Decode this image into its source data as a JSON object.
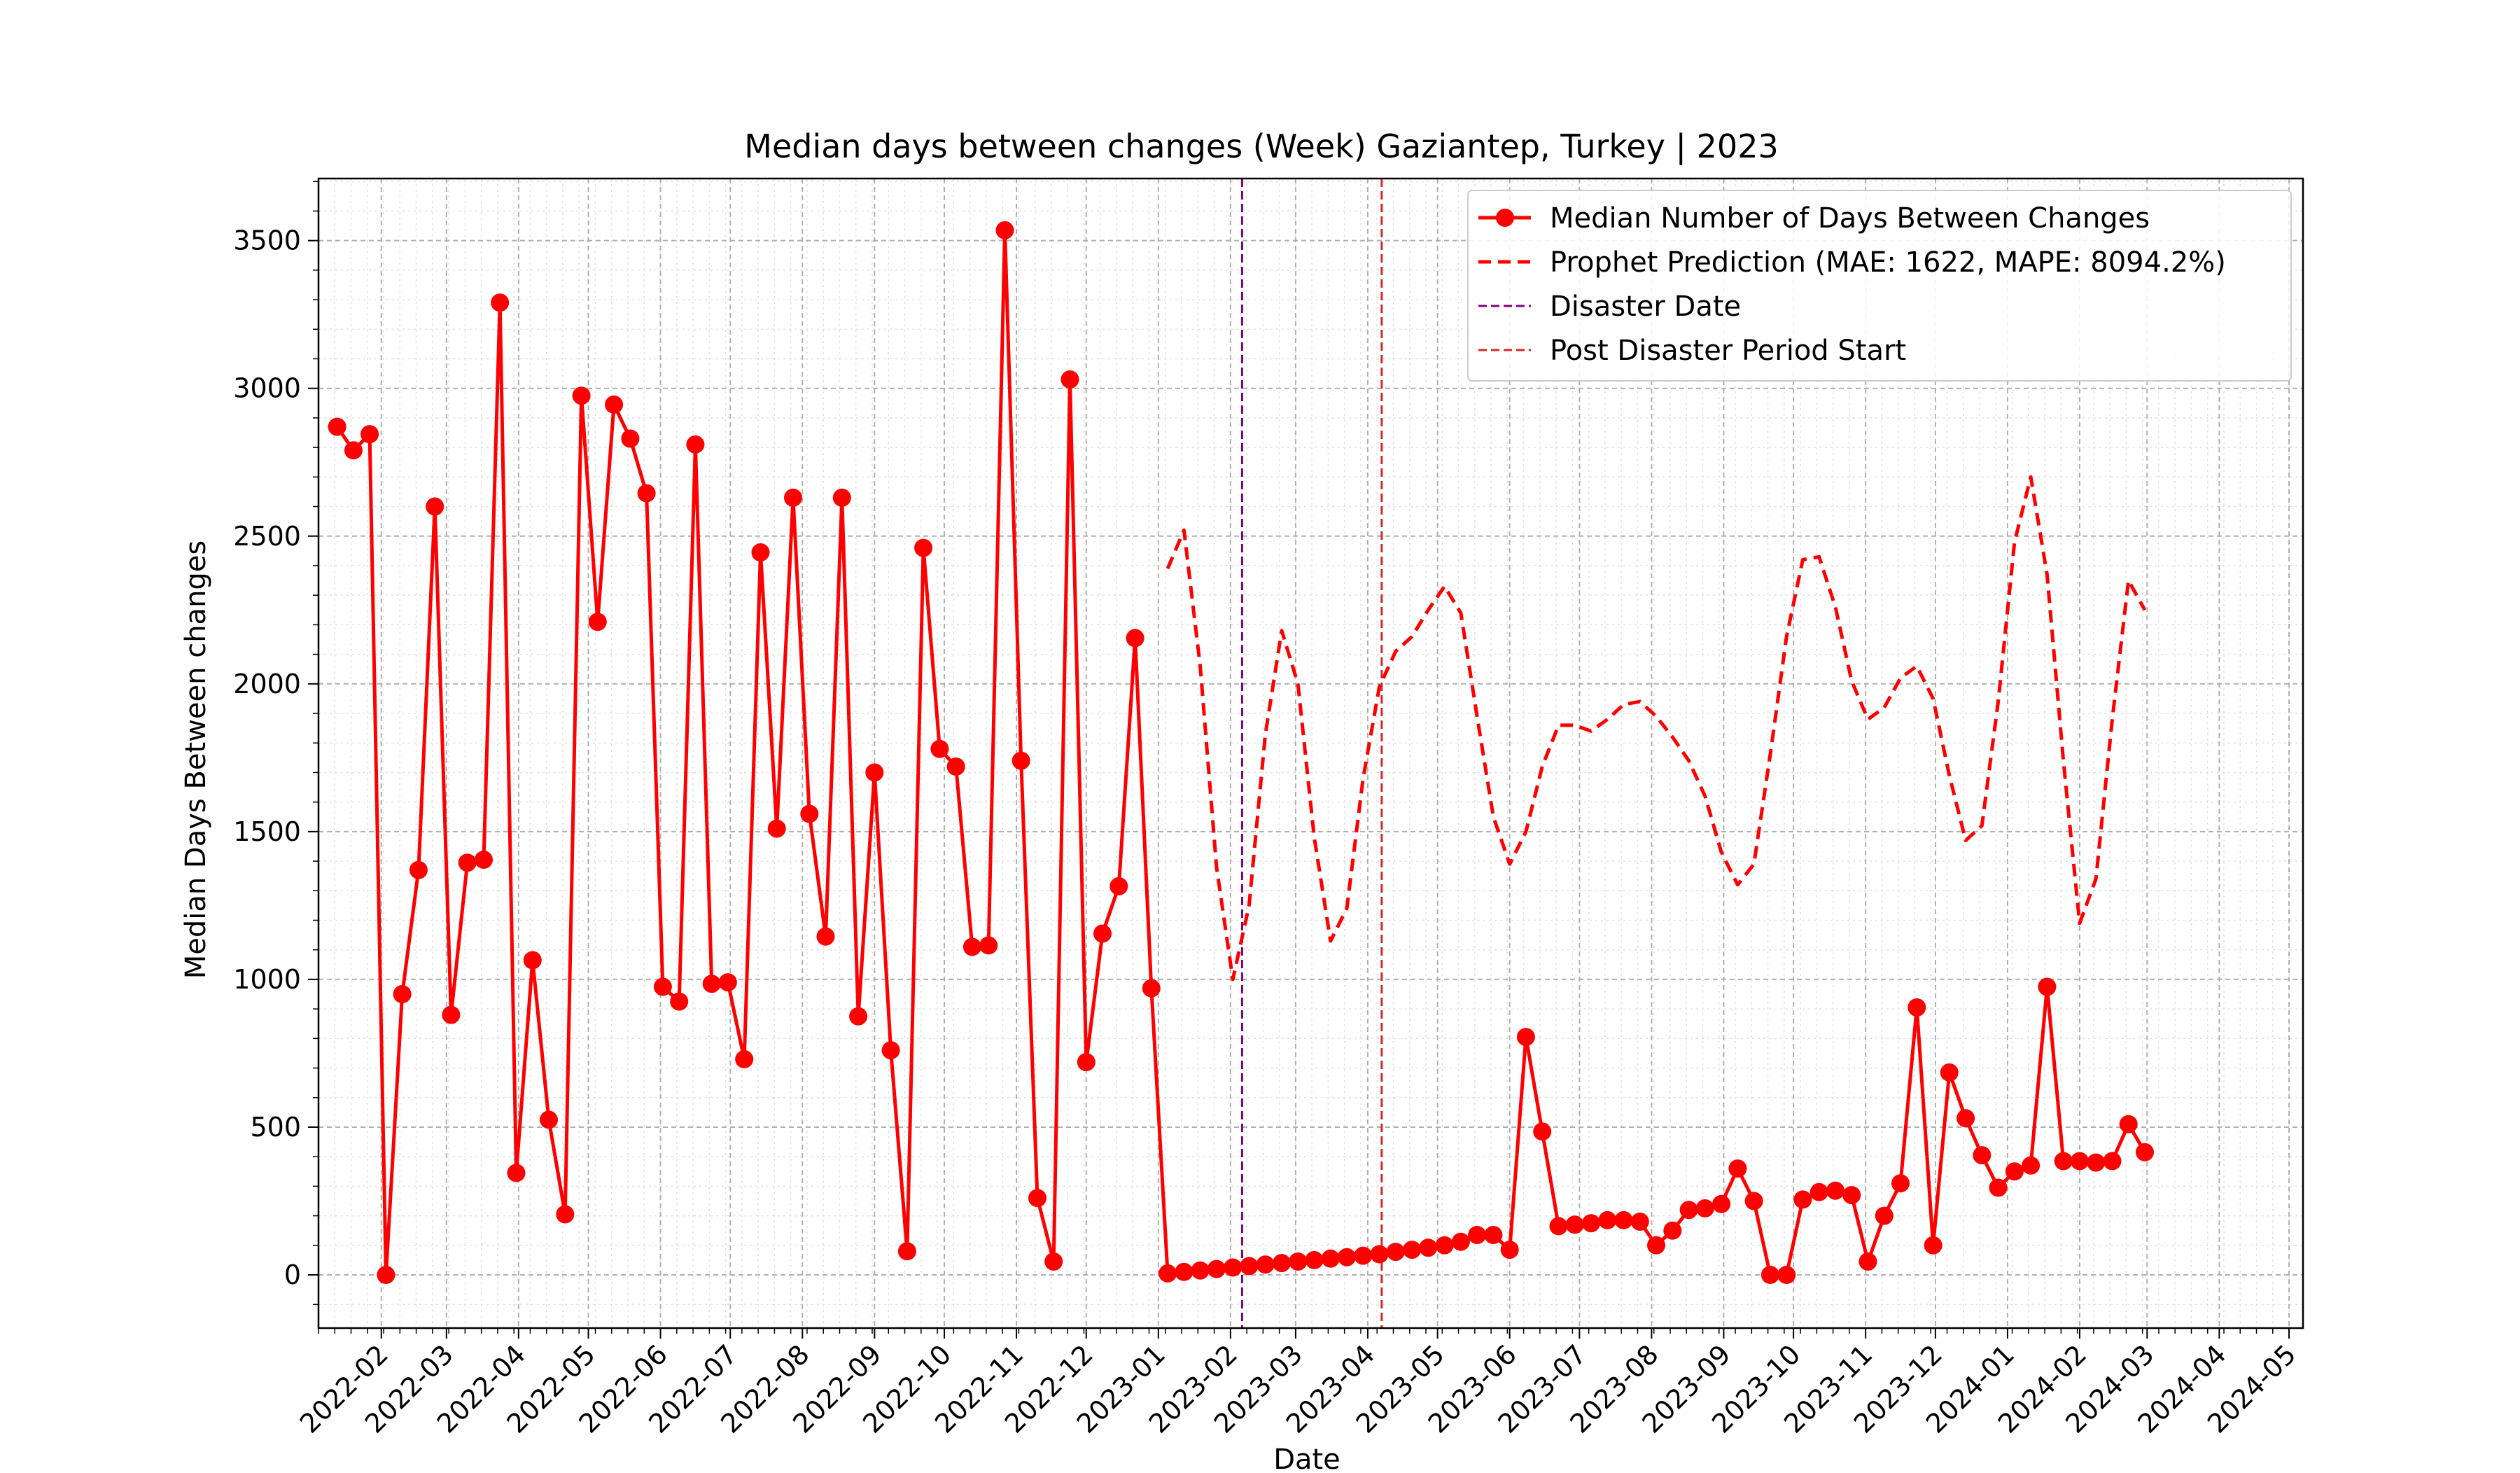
{
  "chart_data": {
    "type": "line",
    "title": "Median days between changes (Week) Gaziantep, Turkey | 2023",
    "xlabel": "Date",
    "ylabel": "Median Days Between changes",
    "xlim": [
      "2022-01-05",
      "2024-05-07"
    ],
    "ylim": [
      -180,
      3710
    ],
    "x_ticks": [
      "2022-02",
      "2022-03",
      "2022-04",
      "2022-05",
      "2022-06",
      "2022-07",
      "2022-08",
      "2022-09",
      "2022-10",
      "2022-11",
      "2022-12",
      "2023-01",
      "2023-02",
      "2023-03",
      "2023-04",
      "2023-05",
      "2023-06",
      "2023-07",
      "2023-08",
      "2023-09",
      "2023-10",
      "2023-11",
      "2023-12",
      "2024-01",
      "2024-02",
      "2024-03",
      "2024-04",
      "2024-05"
    ],
    "y_ticks": [
      0,
      500,
      1000,
      1500,
      2000,
      2500,
      3000,
      3500
    ],
    "grid": true,
    "legend_position": "upper right",
    "colors": {
      "actual": "#ff0000",
      "prediction": "#ff0000",
      "disaster": "#800080",
      "post": "#d62728",
      "grid": "#b0b0b0"
    },
    "legend": [
      "Median Number of Days Between Changes",
      "Prophet Prediction (MAE: 1622, MAPE: 8094.2%)",
      "Disaster Date",
      "Post Disaster Period Start"
    ],
    "vlines": {
      "disaster": "2023-02-06",
      "post_disaster_start": "2023-04-07"
    },
    "series": [
      {
        "name": "Median Number of Days Between Changes",
        "style": "solid-marker",
        "points": [
          [
            "2022-01-13",
            2870
          ],
          [
            "2022-01-20",
            2790
          ],
          [
            "2022-01-27",
            2845
          ],
          [
            "2022-02-03",
            0
          ],
          [
            "2022-02-10",
            950
          ],
          [
            "2022-02-17",
            1370
          ],
          [
            "2022-02-24",
            2600
          ],
          [
            "2022-03-03",
            880
          ],
          [
            "2022-03-10",
            1395
          ],
          [
            "2022-03-17",
            1405
          ],
          [
            "2022-03-24",
            3290
          ],
          [
            "2022-03-31",
            345
          ],
          [
            "2022-04-07",
            1065
          ],
          [
            "2022-04-14",
            525
          ],
          [
            "2022-04-21",
            205
          ],
          [
            "2022-04-28",
            2975
          ],
          [
            "2022-05-05",
            2210
          ],
          [
            "2022-05-12",
            2945
          ],
          [
            "2022-05-19",
            2830
          ],
          [
            "2022-05-26",
            2645
          ],
          [
            "2022-06-02",
            975
          ],
          [
            "2022-06-09",
            925
          ],
          [
            "2022-06-16",
            2810
          ],
          [
            "2022-06-23",
            985
          ],
          [
            "2022-06-30",
            990
          ],
          [
            "2022-07-07",
            730
          ],
          [
            "2022-07-14",
            2445
          ],
          [
            "2022-07-21",
            1510
          ],
          [
            "2022-07-28",
            2630
          ],
          [
            "2022-08-04",
            1560
          ],
          [
            "2022-08-11",
            1145
          ],
          [
            "2022-08-18",
            2630
          ],
          [
            "2022-08-25",
            875
          ],
          [
            "2022-09-01",
            1700
          ],
          [
            "2022-09-08",
            760
          ],
          [
            "2022-09-15",
            80
          ],
          [
            "2022-09-22",
            2460
          ],
          [
            "2022-09-29",
            1780
          ],
          [
            "2022-10-06",
            1720
          ],
          [
            "2022-10-13",
            1110
          ],
          [
            "2022-10-20",
            1115
          ],
          [
            "2022-10-27",
            3535
          ],
          [
            "2022-11-03",
            1740
          ],
          [
            "2022-11-10",
            260
          ],
          [
            "2022-11-17",
            45
          ],
          [
            "2022-11-24",
            3030
          ],
          [
            "2022-12-01",
            720
          ],
          [
            "2022-12-08",
            1155
          ],
          [
            "2022-12-15",
            1315
          ],
          [
            "2022-12-22",
            2155
          ],
          [
            "2022-12-29",
            970
          ],
          [
            "2023-01-05",
            5
          ],
          [
            "2023-01-12",
            10
          ],
          [
            "2023-01-19",
            15
          ],
          [
            "2023-01-26",
            20
          ],
          [
            "2023-02-02",
            25
          ],
          [
            "2023-02-09",
            30
          ],
          [
            "2023-02-16",
            35
          ],
          [
            "2023-02-23",
            40
          ],
          [
            "2023-03-02",
            45
          ],
          [
            "2023-03-09",
            50
          ],
          [
            "2023-03-16",
            55
          ],
          [
            "2023-03-23",
            60
          ],
          [
            "2023-03-30",
            65
          ],
          [
            "2023-04-06",
            70
          ],
          [
            "2023-04-13",
            78
          ],
          [
            "2023-04-20",
            85
          ],
          [
            "2023-04-27",
            92
          ],
          [
            "2023-05-04",
            100
          ],
          [
            "2023-05-11",
            112
          ],
          [
            "2023-05-18",
            135
          ],
          [
            "2023-05-25",
            135
          ],
          [
            "2023-06-01",
            85
          ],
          [
            "2023-06-08",
            805
          ],
          [
            "2023-06-15",
            485
          ],
          [
            "2023-06-22",
            165
          ],
          [
            "2023-06-29",
            170
          ],
          [
            "2023-07-06",
            175
          ],
          [
            "2023-07-13",
            185
          ],
          [
            "2023-07-20",
            185
          ],
          [
            "2023-07-27",
            180
          ],
          [
            "2023-08-03",
            100
          ],
          [
            "2023-08-10",
            150
          ],
          [
            "2023-08-17",
            220
          ],
          [
            "2023-08-24",
            225
          ],
          [
            "2023-08-31",
            240
          ],
          [
            "2023-09-07",
            360
          ],
          [
            "2023-09-14",
            250
          ],
          [
            "2023-09-21",
            0
          ],
          [
            "2023-09-28",
            0
          ],
          [
            "2023-10-05",
            255
          ],
          [
            "2023-10-12",
            280
          ],
          [
            "2023-10-19",
            285
          ],
          [
            "2023-10-26",
            270
          ],
          [
            "2023-11-02",
            45
          ],
          [
            "2023-11-09",
            200
          ],
          [
            "2023-11-16",
            310
          ],
          [
            "2023-11-23",
            905
          ],
          [
            "2023-11-30",
            100
          ],
          [
            "2023-12-07",
            685
          ],
          [
            "2023-12-14",
            530
          ],
          [
            "2023-12-21",
            405
          ],
          [
            "2023-12-28",
            295
          ],
          [
            "2024-01-04",
            350
          ],
          [
            "2024-01-11",
            370
          ],
          [
            "2024-01-18",
            975
          ],
          [
            "2024-01-25",
            385
          ],
          [
            "2024-02-01",
            385
          ],
          [
            "2024-02-08",
            380
          ],
          [
            "2024-02-15",
            385
          ],
          [
            "2024-02-22",
            510
          ],
          [
            "2024-02-29",
            415
          ]
        ]
      },
      {
        "name": "Prophet Prediction (MAE: 1622, MAPE: 8094.2%)",
        "style": "dashed",
        "points": [
          [
            "2023-01-05",
            2390
          ],
          [
            "2023-01-12",
            2520
          ],
          [
            "2023-01-19",
            2060
          ],
          [
            "2023-01-26",
            1380
          ],
          [
            "2023-02-02",
            1000
          ],
          [
            "2023-02-09",
            1250
          ],
          [
            "2023-02-16",
            1830
          ],
          [
            "2023-02-23",
            2180
          ],
          [
            "2023-03-02",
            2000
          ],
          [
            "2023-03-09",
            1480
          ],
          [
            "2023-03-16",
            1130
          ],
          [
            "2023-03-23",
            1240
          ],
          [
            "2023-03-30",
            1680
          ],
          [
            "2023-04-06",
            1990
          ],
          [
            "2023-04-13",
            2110
          ],
          [
            "2023-04-20",
            2160
          ],
          [
            "2023-04-27",
            2250
          ],
          [
            "2023-05-04",
            2330
          ],
          [
            "2023-05-11",
            2240
          ],
          [
            "2023-05-18",
            1890
          ],
          [
            "2023-05-25",
            1550
          ],
          [
            "2023-06-01",
            1390
          ],
          [
            "2023-06-08",
            1500
          ],
          [
            "2023-06-15",
            1720
          ],
          [
            "2023-06-22",
            1860
          ],
          [
            "2023-06-29",
            1860
          ],
          [
            "2023-07-06",
            1840
          ],
          [
            "2023-07-13",
            1880
          ],
          [
            "2023-07-20",
            1930
          ],
          [
            "2023-07-27",
            1940
          ],
          [
            "2023-08-03",
            1890
          ],
          [
            "2023-08-10",
            1820
          ],
          [
            "2023-08-17",
            1740
          ],
          [
            "2023-08-24",
            1620
          ],
          [
            "2023-08-31",
            1430
          ],
          [
            "2023-09-07",
            1320
          ],
          [
            "2023-09-14",
            1390
          ],
          [
            "2023-09-21",
            1760
          ],
          [
            "2023-09-28",
            2160
          ],
          [
            "2023-10-05",
            2420
          ],
          [
            "2023-10-12",
            2430
          ],
          [
            "2023-10-19",
            2260
          ],
          [
            "2023-10-26",
            2010
          ],
          [
            "2023-11-02",
            1880
          ],
          [
            "2023-11-09",
            1920
          ],
          [
            "2023-11-16",
            2020
          ],
          [
            "2023-11-23",
            2060
          ],
          [
            "2023-11-30",
            1950
          ],
          [
            "2023-12-07",
            1690
          ],
          [
            "2023-12-14",
            1470
          ],
          [
            "2023-12-21",
            1520
          ],
          [
            "2023-12-28",
            1940
          ],
          [
            "2024-01-04",
            2480
          ],
          [
            "2024-01-11",
            2700
          ],
          [
            "2024-01-18",
            2370
          ],
          [
            "2024-01-25",
            1740
          ],
          [
            "2024-02-01",
            1190
          ],
          [
            "2024-02-08",
            1340
          ],
          [
            "2024-02-15",
            1880
          ],
          [
            "2024-02-22",
            2350
          ],
          [
            "2024-02-29",
            2250
          ]
        ]
      }
    ]
  }
}
